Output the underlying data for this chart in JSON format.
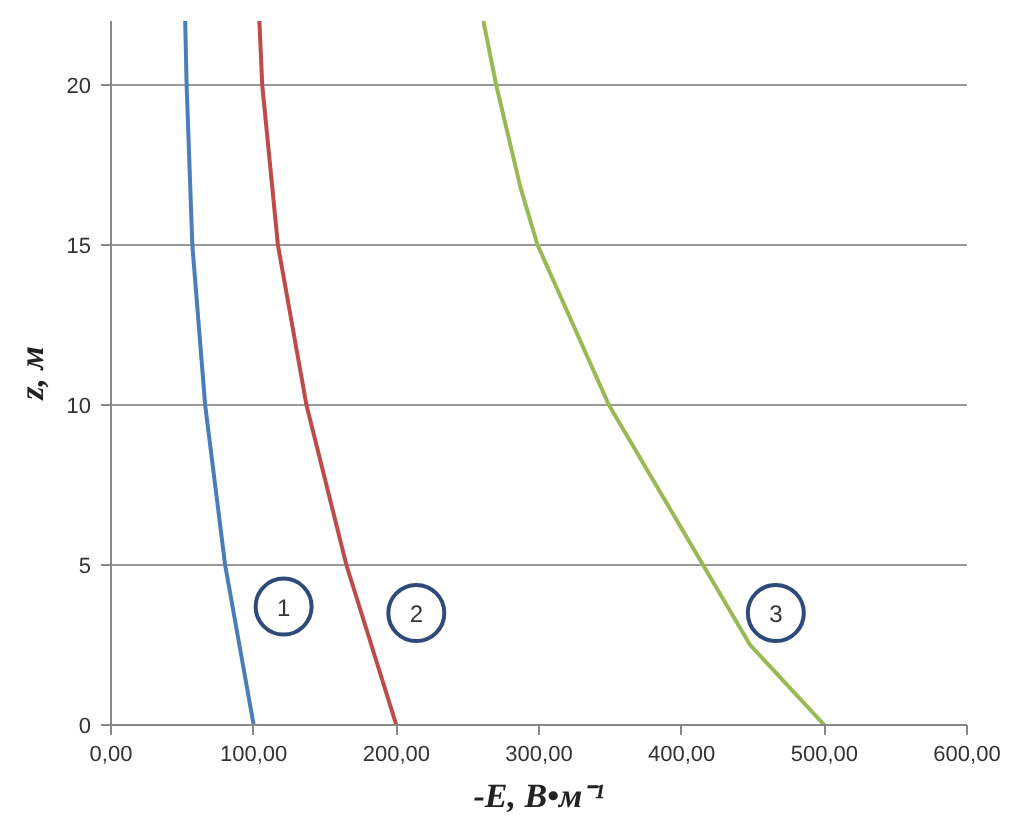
{
  "chart_data": {
    "type": "line",
    "xlabel": "-E, В•м⁻¹",
    "ylabel": "z, м",
    "xlim": [
      0,
      600
    ],
    "ylim": [
      0,
      22
    ],
    "xticks": [
      {
        "value": 0,
        "label": "0,00"
      },
      {
        "value": 100,
        "label": "100,00"
      },
      {
        "value": 200,
        "label": "200,00"
      },
      {
        "value": 300,
        "label": "300,00"
      },
      {
        "value": 400,
        "label": "400,00"
      },
      {
        "value": 500,
        "label": "500,00"
      },
      {
        "value": 600,
        "label": "600,00"
      }
    ],
    "yticks": [
      0,
      5,
      10,
      15,
      20
    ],
    "grid": "y",
    "marker": "none",
    "line_style": "solid",
    "series": [
      {
        "color": "#4a7ebb",
        "x": [
          100,
          80,
          66,
          57,
          53,
          52
        ],
        "values": [
          0,
          5,
          10,
          15,
          20,
          22
        ]
      },
      {
        "color": "#be4b48",
        "x": [
          200,
          165,
          137,
          117,
          106,
          104
        ],
        "values": [
          0,
          5,
          10,
          15,
          20,
          22
        ]
      },
      {
        "color": "#98b954",
        "x": [
          500,
          448,
          415,
          349,
          299,
          287,
          270,
          261
        ],
        "values": [
          0,
          2.5,
          5,
          10,
          15,
          16.8,
          20,
          22
        ]
      }
    ],
    "annotations": [
      {
        "text": "1",
        "x": 121,
        "y": 3.7
      },
      {
        "text": "2",
        "x": 214,
        "y": 3.5
      },
      {
        "text": "3",
        "x": 466,
        "y": 3.5
      }
    ]
  }
}
